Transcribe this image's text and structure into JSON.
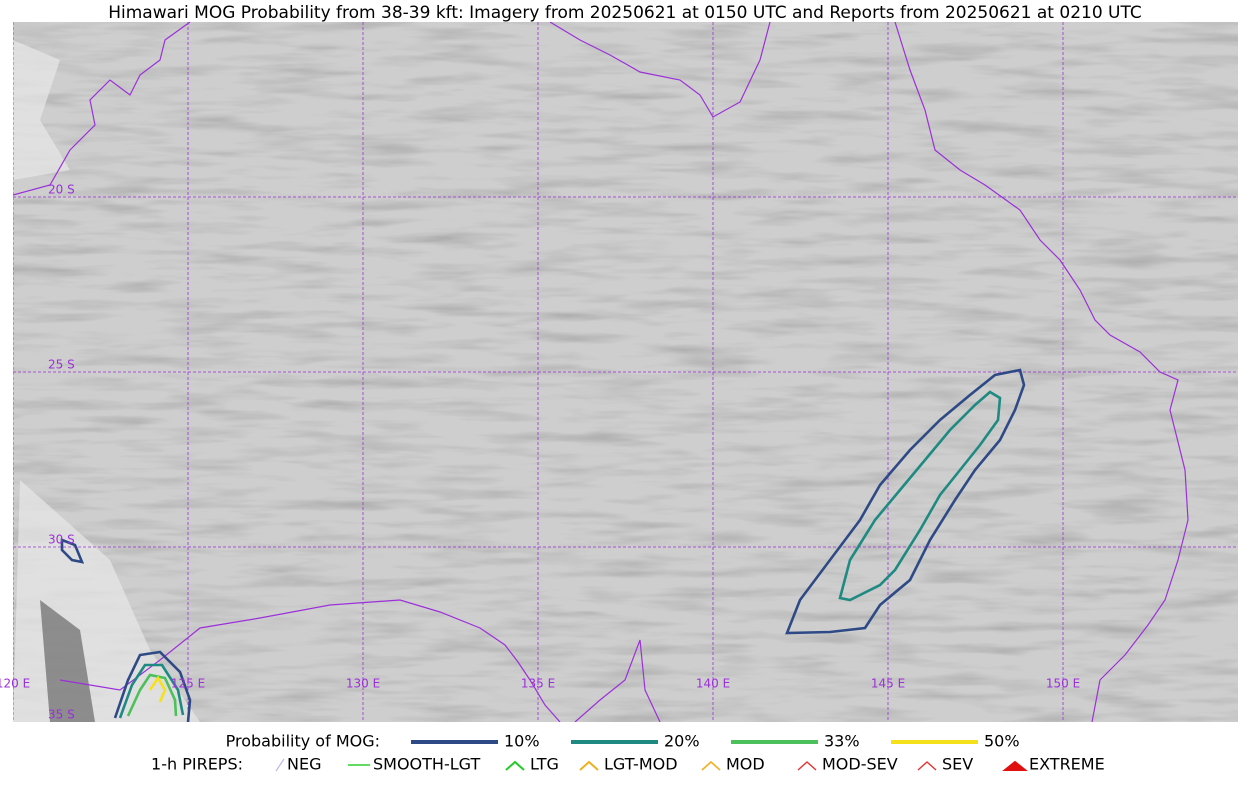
{
  "title": "Himawari MOG Probability from 38-39 kft: Imagery from 20250621 at 0150 UTC and Reports from 20250621 at 0210 UTC",
  "map": {
    "lat_labels": [
      "20 S",
      "25 S",
      "30 S",
      "35 S"
    ],
    "lon_labels": [
      "120 E",
      "125 E",
      "130 E",
      "135 E",
      "140 E",
      "145 E",
      "150 E"
    ]
  },
  "legend": {
    "probability_title": "Probability of MOG:",
    "probability_levels": [
      {
        "label": "10%",
        "color": "#2e4a86"
      },
      {
        "label": "20%",
        "color": "#1e8a82"
      },
      {
        "label": "33%",
        "color": "#4cc05a"
      },
      {
        "label": "50%",
        "color": "#f5e11a"
      }
    ],
    "pireps_title": "1-h PIREPS:",
    "pireps": [
      {
        "label": "NEG",
        "color": "#b9b9f0"
      },
      {
        "label": "SMOOTH-LGT",
        "color": "#2fcf2f"
      },
      {
        "label": "LTG",
        "color": "#22cc22"
      },
      {
        "label": "LGT-MOD",
        "color": "#f0b020"
      },
      {
        "label": "MOD",
        "color": "#f0b020"
      },
      {
        "label": "MOD-SEV",
        "color": "#e83030"
      },
      {
        "label": "SEV",
        "color": "#e83030"
      },
      {
        "label": "EXTREME",
        "color": "#e01010"
      }
    ]
  }
}
